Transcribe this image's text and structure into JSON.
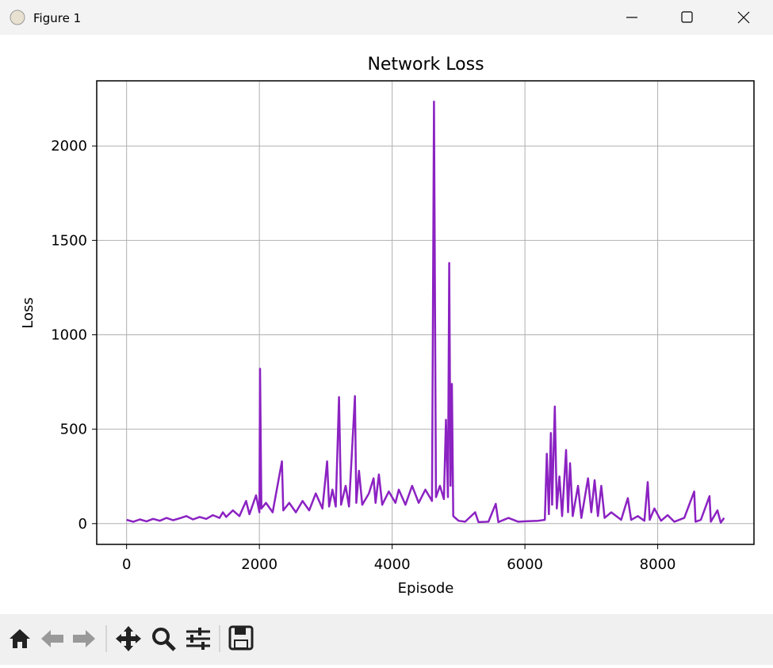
{
  "window": {
    "title": "Figure 1"
  },
  "chart_data": {
    "type": "line",
    "title": "Network Loss",
    "x_label": "Episode",
    "y_label": "Loss",
    "color": "#8b22c2",
    "grid": true,
    "xlim": [
      -450,
      9450
    ],
    "ylim": [
      -110,
      2345
    ],
    "xticks": [
      0,
      2000,
      4000,
      6000,
      8000
    ],
    "yticks": [
      0,
      500,
      1000,
      1500,
      2000
    ],
    "x": [
      0,
      100,
      200,
      300,
      400,
      500,
      600,
      700,
      800,
      900,
      1000,
      1100,
      1200,
      1300,
      1400,
      1450,
      1500,
      1600,
      1700,
      1800,
      1850,
      1950,
      2000,
      2010,
      2030,
      2100,
      2200,
      2340,
      2360,
      2450,
      2550,
      2650,
      2750,
      2850,
      2950,
      3020,
      3050,
      3100,
      3150,
      3200,
      3230,
      3300,
      3350,
      3440,
      3460,
      3500,
      3550,
      3650,
      3720,
      3750,
      3800,
      3850,
      3950,
      4050,
      4100,
      4200,
      4300,
      4400,
      4500,
      4600,
      4630,
      4660,
      4720,
      4780,
      4810,
      4840,
      4860,
      4880,
      4900,
      4920,
      5000,
      5100,
      5250,
      5300,
      5450,
      5560,
      5600,
      5750,
      5900,
      6000,
      6200,
      6300,
      6330,
      6360,
      6390,
      6410,
      6450,
      6480,
      6520,
      6560,
      6620,
      6650,
      6680,
      6720,
      6800,
      6850,
      6950,
      7000,
      7050,
      7100,
      7150,
      7200,
      7300,
      7450,
      7550,
      7600,
      7700,
      7800,
      7850,
      7880,
      7950,
      8050,
      8150,
      8250,
      8400,
      8550,
      8570,
      8650,
      8780,
      8800,
      8900,
      8950,
      9000
    ],
    "values": [
      20,
      10,
      22,
      12,
      25,
      15,
      30,
      18,
      28,
      40,
      22,
      35,
      25,
      45,
      30,
      60,
      35,
      70,
      40,
      120,
      50,
      150,
      60,
      820,
      80,
      110,
      60,
      330,
      70,
      110,
      60,
      120,
      70,
      160,
      80,
      330,
      90,
      180,
      90,
      670,
      100,
      200,
      90,
      675,
      110,
      280,
      100,
      160,
      240,
      110,
      260,
      100,
      170,
      110,
      180,
      100,
      200,
      110,
      180,
      120,
      2235,
      140,
      200,
      130,
      550,
      140,
      1380,
      200,
      740,
      40,
      15,
      10,
      60,
      8,
      10,
      105,
      8,
      30,
      10,
      12,
      15,
      20,
      370,
      50,
      480,
      100,
      620,
      80,
      250,
      40,
      390,
      60,
      320,
      40,
      200,
      30,
      240,
      60,
      230,
      40,
      200,
      30,
      60,
      20,
      135,
      20,
      40,
      15,
      220,
      20,
      80,
      15,
      45,
      10,
      30,
      170,
      10,
      20,
      145,
      10,
      70,
      5,
      30
    ]
  }
}
